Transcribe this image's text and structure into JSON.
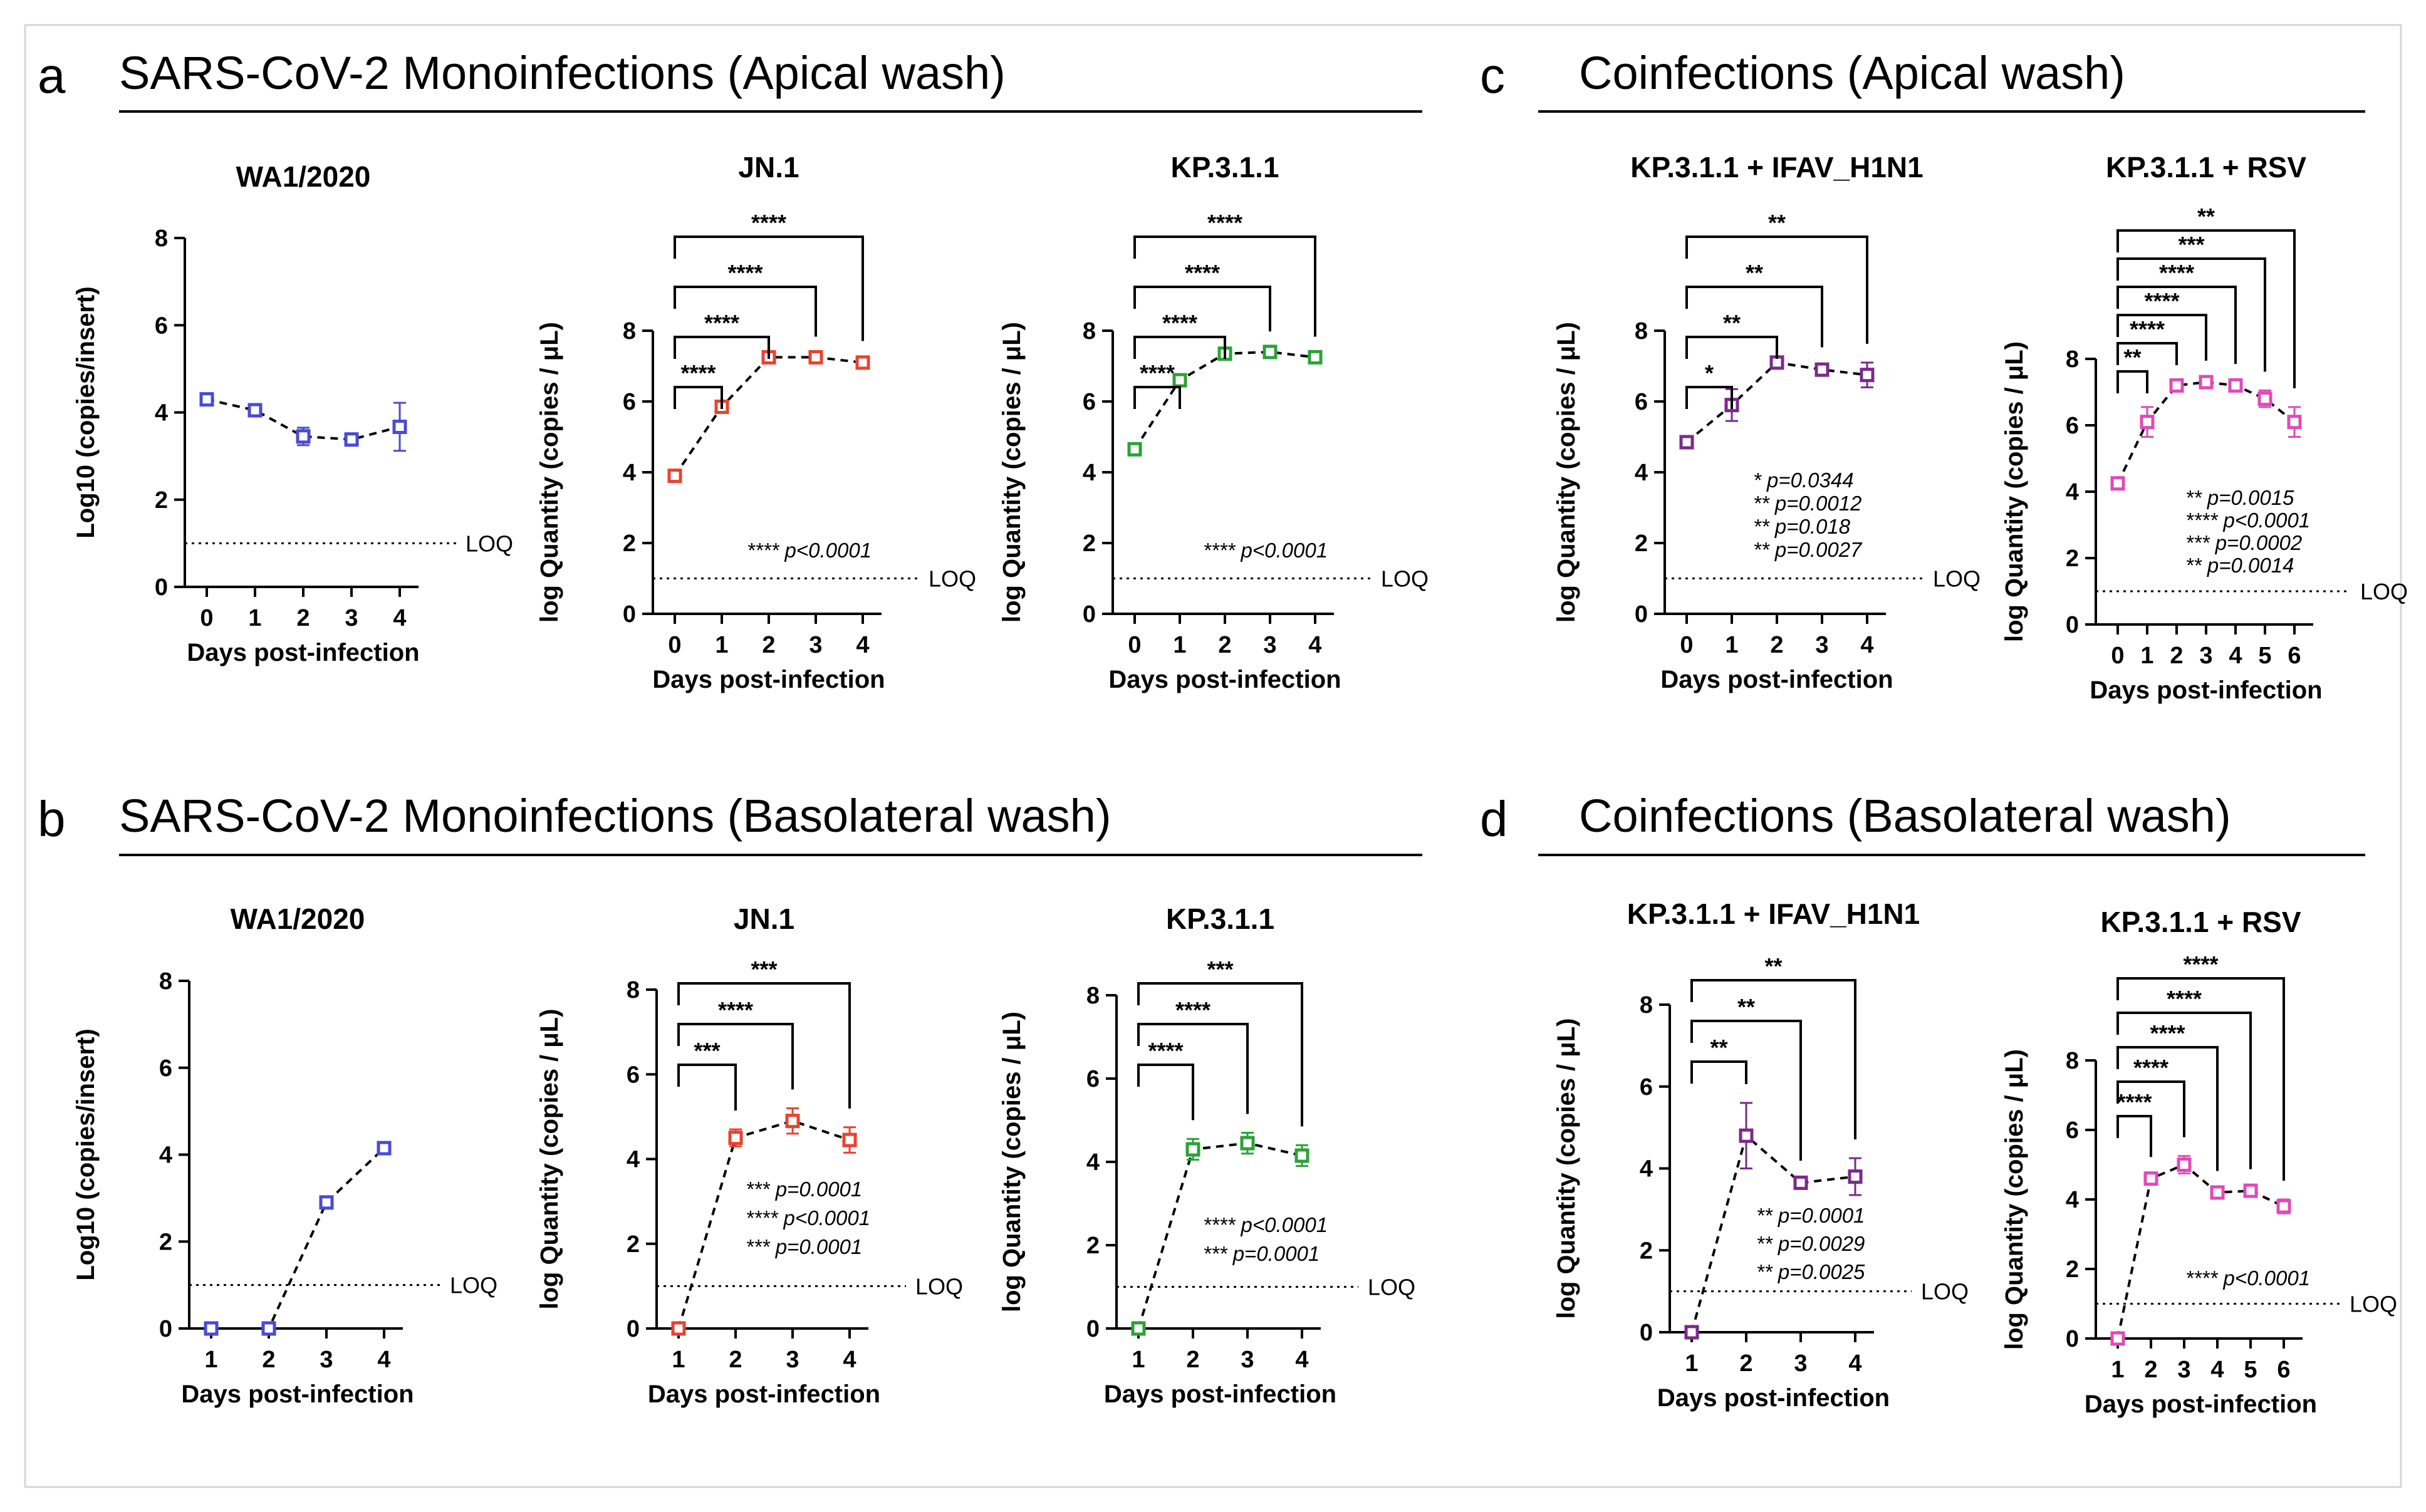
{
  "sections": [
    {
      "letter": "a",
      "title": "SARS-CoV-2 Monoinfections (Apical wash)"
    },
    {
      "letter": "b",
      "title": "SARS-CoV-2 Monoinfections (Basolateral wash)"
    },
    {
      "letter": "c",
      "title": "Coinfections (Apical wash)"
    },
    {
      "letter": "d",
      "title": "Coinfections (Basolateral wash)"
    }
  ],
  "chart_data": [
    {
      "id": "a1",
      "type": "line",
      "section": "a",
      "title": "WA1/2020",
      "ylabel": "Log10 (copies/insert)",
      "xlabel": "Days post-infection",
      "color": "#4a4ad6",
      "x": [
        0,
        1,
        2,
        3,
        4
      ],
      "y": [
        4.3,
        4.05,
        3.45,
        3.38,
        3.67
      ],
      "err": [
        0.08,
        0.08,
        0.2,
        0.08,
        0.55
      ],
      "ylim": [
        0,
        8
      ],
      "yticks": [
        0,
        2,
        4,
        6,
        8
      ],
      "loq": 1,
      "loq_label": "LOQ",
      "brackets": [],
      "pvalues": []
    },
    {
      "id": "a2",
      "type": "line",
      "section": "a",
      "title": "JN.1",
      "ylabel": "log Quantity (copies / μL)",
      "xlabel": "Days post-infection",
      "color": "#e8432e",
      "x": [
        0,
        1,
        2,
        3,
        4
      ],
      "y": [
        3.9,
        5.85,
        7.25,
        7.25,
        7.1
      ],
      "err": [
        0.08,
        0.12,
        0.08,
        0.05,
        0.08
      ],
      "ylim": [
        0,
        8
      ],
      "yticks": [
        0,
        2,
        4,
        6,
        8
      ],
      "loq": 1,
      "loq_label": "LOQ",
      "brackets": [
        {
          "to": 1,
          "label": "****"
        },
        {
          "to": 2,
          "label": "****"
        },
        {
          "to": 3,
          "label": "****"
        },
        {
          "to": 4,
          "label": "****"
        }
      ],
      "pvalues": [
        "**** p<0.0001"
      ]
    },
    {
      "id": "a3",
      "type": "line",
      "section": "a",
      "title": "KP.3.1.1",
      "ylabel": "log Quantity (copies / μL)",
      "xlabel": "Days post-infection",
      "color": "#2aa336",
      "x": [
        0,
        1,
        2,
        3,
        4
      ],
      "y": [
        4.65,
        6.6,
        7.35,
        7.4,
        7.25
      ],
      "err": [
        0.08,
        0.08,
        0.08,
        0.05,
        0.05
      ],
      "ylim": [
        0,
        8
      ],
      "yticks": [
        0,
        2,
        4,
        6,
        8
      ],
      "loq": 1,
      "loq_label": "LOQ",
      "brackets": [
        {
          "to": 1,
          "label": "****"
        },
        {
          "to": 2,
          "label": "****"
        },
        {
          "to": 3,
          "label": "****"
        },
        {
          "to": 4,
          "label": "****"
        }
      ],
      "pvalues": [
        "**** p<0.0001"
      ]
    },
    {
      "id": "c1",
      "type": "line",
      "section": "c",
      "title": "KP.3.1.1 + IFAV_H1N1",
      "ylabel": "log Quantity (copies / μL)",
      "xlabel": "Days post-infection",
      "color": "#7b2a8c",
      "x": [
        0,
        1,
        2,
        3,
        4
      ],
      "y": [
        4.85,
        5.9,
        7.1,
        6.9,
        6.75
      ],
      "err": [
        0.08,
        0.45,
        0.12,
        0.1,
        0.35
      ],
      "ylim": [
        0,
        8
      ],
      "yticks": [
        0,
        2,
        4,
        6,
        8
      ],
      "loq": 1,
      "loq_label": "LOQ",
      "brackets": [
        {
          "to": 1,
          "label": "*"
        },
        {
          "to": 2,
          "label": "**"
        },
        {
          "to": 3,
          "label": "**"
        },
        {
          "to": 4,
          "label": "**"
        }
      ],
      "pvalues": [
        "* p=0.0344",
        "** p=0.0012",
        "** p=0.018",
        "** p=0.0027"
      ]
    },
    {
      "id": "c2",
      "type": "line",
      "section": "c",
      "title": "KP.3.1.1 + RSV",
      "ylabel": "log Quantity (copies / μL)",
      "xlabel": "Days post-infection",
      "color": "#e04ab8",
      "x": [
        0,
        1,
        2,
        3,
        4,
        5,
        6
      ],
      "y": [
        4.25,
        6.1,
        7.2,
        7.3,
        7.2,
        6.8,
        6.1
      ],
      "err": [
        0.08,
        0.45,
        0.1,
        0.08,
        0.08,
        0.25,
        0.45
      ],
      "ylim": [
        0,
        8
      ],
      "yticks": [
        0,
        2,
        4,
        6,
        8
      ],
      "loq": 1,
      "loq_label": "LOQ",
      "brackets": [
        {
          "to": 1,
          "label": "**"
        },
        {
          "to": 2,
          "label": "****"
        },
        {
          "to": 3,
          "label": "****"
        },
        {
          "to": 4,
          "label": "****"
        },
        {
          "to": 5,
          "label": "***"
        },
        {
          "to": 6,
          "label": "**"
        }
      ],
      "pvalues": [
        "** p=0.0015",
        "**** p<0.0001",
        "*** p=0.0002",
        "** p=0.0014"
      ]
    },
    {
      "id": "b1",
      "type": "line",
      "section": "b",
      "title": "WA1/2020",
      "ylabel": "Log10 (copies/insert)",
      "xlabel": "Days post-infection",
      "color": "#4a4ad6",
      "x": [
        1,
        2,
        3,
        4
      ],
      "y": [
        0,
        0,
        2.9,
        4.15
      ],
      "err": [
        0,
        0,
        0.08,
        0.08
      ],
      "ylim": [
        0,
        8
      ],
      "yticks": [
        0,
        2,
        4,
        6,
        8
      ],
      "loq": 1,
      "loq_label": "LOQ",
      "brackets": [],
      "pvalues": []
    },
    {
      "id": "b2",
      "type": "line",
      "section": "b",
      "title": "JN.1",
      "ylabel": "log Quantity (copies / μL)",
      "xlabel": "Days post-infection",
      "color": "#e8432e",
      "x": [
        1,
        2,
        3,
        4
      ],
      "y": [
        0,
        4.5,
        4.9,
        4.45
      ],
      "err": [
        0,
        0.2,
        0.3,
        0.3
      ],
      "ylim": [
        0,
        8
      ],
      "yticks": [
        0,
        2,
        4,
        6,
        8
      ],
      "loq": 1,
      "loq_label": "LOQ",
      "brackets": [
        {
          "to": 2,
          "label": "***"
        },
        {
          "to": 3,
          "label": "****"
        },
        {
          "to": 4,
          "label": "***"
        }
      ],
      "pvalues": [
        "*** p=0.0001",
        "**** p<0.0001",
        "*** p=0.0001"
      ]
    },
    {
      "id": "b3",
      "type": "line",
      "section": "b",
      "title": "KP.3.1.1",
      "ylabel": "log Quantity (copies / μL)",
      "xlabel": "Days post-infection",
      "color": "#2aa336",
      "x": [
        1,
        2,
        3,
        4
      ],
      "y": [
        0,
        4.3,
        4.45,
        4.15
      ],
      "err": [
        0,
        0.25,
        0.25,
        0.25
      ],
      "ylim": [
        0,
        8
      ],
      "yticks": [
        0,
        2,
        4,
        6,
        8
      ],
      "loq": 1,
      "loq_label": "LOQ",
      "brackets": [
        {
          "to": 2,
          "label": "****"
        },
        {
          "to": 3,
          "label": "****"
        },
        {
          "to": 4,
          "label": "***"
        }
      ],
      "pvalues": [
        "**** p<0.0001",
        "*** p=0.0001"
      ]
    },
    {
      "id": "d1",
      "type": "line",
      "section": "d",
      "title": "KP.3.1.1 + IFAV_H1N1",
      "ylabel": "log Quantity (copies / μL)",
      "xlabel": "Days post-infection",
      "color": "#7b2a8c",
      "x": [
        1,
        2,
        3,
        4
      ],
      "y": [
        0,
        4.8,
        3.65,
        3.8
      ],
      "err": [
        0,
        0.8,
        0.08,
        0.45
      ],
      "ylim": [
        0,
        8
      ],
      "yticks": [
        0,
        2,
        4,
        6,
        8
      ],
      "loq": 1,
      "loq_label": "LOQ",
      "brackets": [
        {
          "to": 2,
          "label": "**"
        },
        {
          "to": 3,
          "label": "**"
        },
        {
          "to": 4,
          "label": "**"
        }
      ],
      "pvalues": [
        "** p=0.0001",
        "** p=0.0029",
        "** p=0.0025"
      ]
    },
    {
      "id": "d2",
      "type": "line",
      "section": "d",
      "title": "KP.3.1.1 + RSV",
      "ylabel": "log Quantity (copies / μL)",
      "xlabel": "Days post-infection",
      "color": "#e04ab8",
      "x": [
        1,
        2,
        3,
        4,
        5,
        6
      ],
      "y": [
        0,
        4.6,
        5.0,
        4.2,
        4.25,
        3.8
      ],
      "err": [
        0,
        0.08,
        0.25,
        0.08,
        0.08,
        0.2
      ],
      "ylim": [
        0,
        8
      ],
      "yticks": [
        0,
        2,
        4,
        6,
        8
      ],
      "loq": 1,
      "loq_label": "LOQ",
      "brackets": [
        {
          "to": 2,
          "label": "****"
        },
        {
          "to": 3,
          "label": "****"
        },
        {
          "to": 4,
          "label": "****"
        },
        {
          "to": 5,
          "label": "****"
        },
        {
          "to": 6,
          "label": "****"
        }
      ],
      "pvalues": [
        "**** p<0.0001"
      ]
    }
  ]
}
